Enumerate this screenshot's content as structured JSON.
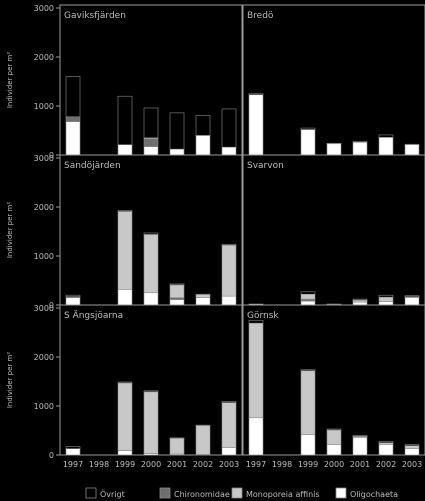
{
  "figure": {
    "background": "#000000",
    "axis_color": "#9a9a9a",
    "text_color": "#bdbdbd"
  },
  "chart_data": {
    "type": "bar",
    "stacked": true,
    "layout": "3x2 panel grid",
    "categories": [
      "1997",
      "1998",
      "1999",
      "2000",
      "2001",
      "2002",
      "2003"
    ],
    "ylim": [
      0,
      3000
    ],
    "yticks": [
      "0",
      "1000",
      "2000",
      "3000"
    ],
    "ylabels": [
      "Individer per m²",
      "Individer per m²",
      "Individer per m²"
    ],
    "legend": {
      "position": "bottom",
      "entries": [
        {
          "name": "Övrigt",
          "color": "#000000"
        },
        {
          "name": "Chironomidae",
          "color": "#6e6e6e"
        },
        {
          "name": "Monoporeia affinis",
          "color": "#c8c8c8"
        },
        {
          "name": "Oligochaeta",
          "color": "#ffffff"
        }
      ]
    },
    "series_order": [
      "Oligochaeta",
      "Chironomidae",
      "Monoporeia affinis",
      "Övrigt"
    ],
    "panels": [
      {
        "title": "Gaviksfjärden",
        "series": [
          {
            "name": "Oligochaeta",
            "values": [
              680,
              null,
              210,
              170,
              120,
              400,
              160
            ]
          },
          {
            "name": "Chironomidae",
            "values": [
              100,
              null,
              0,
              160,
              0,
              0,
              0
            ]
          },
          {
            "name": "Monoporeia affinis",
            "values": [
              0,
              null,
              0,
              20,
              0,
              0,
              0
            ]
          },
          {
            "name": "Övrigt",
            "values": [
              820,
              null,
              990,
              610,
              740,
              410,
              780
            ]
          }
        ]
      },
      {
        "title": "Bredö",
        "series": [
          {
            "name": "Oligochaeta",
            "values": [
              1230,
              null,
              520,
              230,
              260,
              360,
              210
            ]
          },
          {
            "name": "Chironomidae",
            "values": [
              0,
              null,
              0,
              0,
              0,
              0,
              0
            ]
          },
          {
            "name": "Monoporeia affinis",
            "values": [
              0,
              null,
              0,
              0,
              0,
              0,
              0
            ]
          },
          {
            "name": "Övrigt",
            "values": [
              20,
              null,
              30,
              10,
              20,
              50,
              10
            ]
          }
        ]
      },
      {
        "title": "Sandöjärden",
        "series": [
          {
            "name": "Oligochaeta",
            "values": [
              150,
              null,
              320,
              250,
              110,
              150,
              180
            ]
          },
          {
            "name": "Chironomidae",
            "values": [
              20,
              null,
              0,
              0,
              40,
              0,
              0
            ]
          },
          {
            "name": "Monoporeia affinis",
            "values": [
              0,
              null,
              1590,
              1190,
              260,
              60,
              1040
            ]
          },
          {
            "name": "Övrigt",
            "values": [
              30,
              null,
              20,
              30,
              20,
              10,
              20
            ]
          }
        ]
      },
      {
        "title": "Svarvon",
        "series": [
          {
            "name": "Oligochaeta",
            "values": [
              20,
              null,
              80,
              10,
              60,
              70,
              150
            ]
          },
          {
            "name": "Chironomidae",
            "values": [
              0,
              null,
              40,
              0,
              0,
              0,
              0
            ]
          },
          {
            "name": "Monoporeia affinis",
            "values": [
              0,
              null,
              100,
              0,
              40,
              90,
              20
            ]
          },
          {
            "name": "Övrigt",
            "values": [
              0,
              null,
              50,
              10,
              20,
              40,
              20
            ]
          }
        ]
      },
      {
        "title": "S Ängsjöarna",
        "series": [
          {
            "name": "Oligochaeta",
            "values": [
              130,
              null,
              90,
              30,
              20,
              10,
              150
            ]
          },
          {
            "name": "Chironomidae",
            "values": [
              0,
              null,
              0,
              0,
              0,
              0,
              0
            ]
          },
          {
            "name": "Monoporeia affinis",
            "values": [
              0,
              null,
              1380,
              1260,
              320,
              590,
              920
            ]
          },
          {
            "name": "Övrigt",
            "values": [
              40,
              null,
              20,
              20,
              10,
              10,
              20
            ]
          }
        ]
      },
      {
        "title": "Görnsk",
        "series": [
          {
            "name": "Oligochaeta",
            "values": [
              760,
              null,
              420,
              210,
              360,
              210,
              130
            ]
          },
          {
            "name": "Chironomidae",
            "values": [
              0,
              null,
              0,
              0,
              0,
              0,
              0
            ]
          },
          {
            "name": "Monoporeia affinis",
            "values": [
              1930,
              null,
              1300,
              300,
              20,
              40,
              60
            ]
          },
          {
            "name": "Övrigt",
            "values": [
              60,
              null,
              20,
              20,
              20,
              30,
              20
            ]
          }
        ]
      }
    ]
  }
}
